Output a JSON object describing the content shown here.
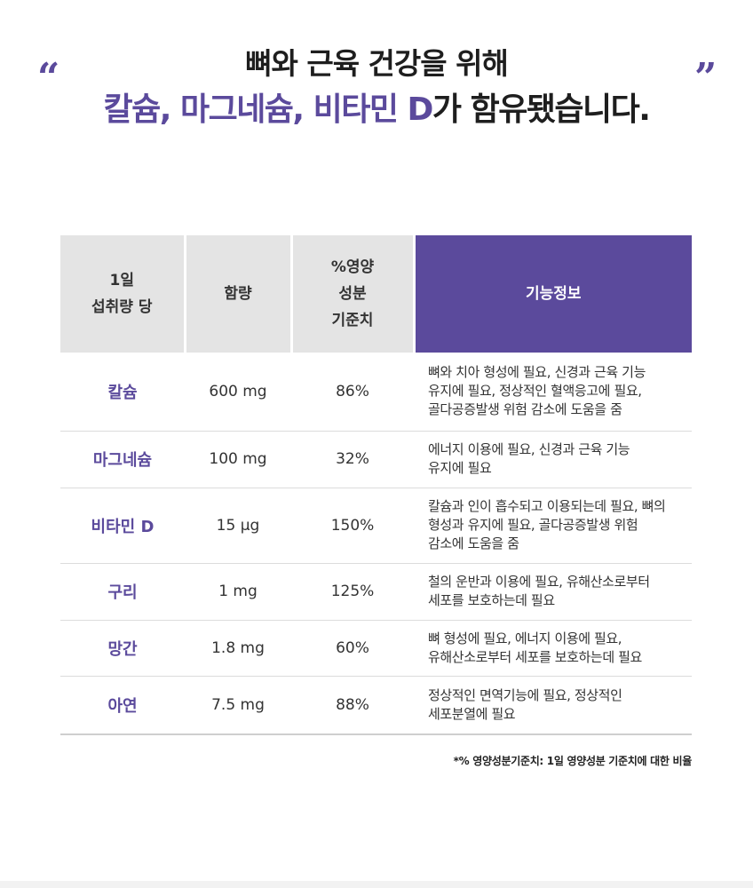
{
  "headline": {
    "open_quote": "“",
    "close_quote": "”",
    "line1": "뼈와 근육 건강을 위해",
    "line2_accent": "칼슘, 마그네슘, 비타민 D",
    "line2_rest": "가 함유됐습니다."
  },
  "table": {
    "headers": {
      "col1": [
        "1일",
        "섭취량 당"
      ],
      "col2": "함량",
      "col3": [
        "%영양",
        "성분",
        "기준치"
      ],
      "col4": "기능정보"
    },
    "rows": [
      {
        "name": "칼슘",
        "amount": "600 mg",
        "percent": "86%",
        "info": [
          "뼈와 치아 형성에 필요, 신경과 근육 기능",
          "유지에 필요, 정상적인 혈액응고에 필요,",
          "골다공증발생 위험 감소에 도움을 줌"
        ]
      },
      {
        "name": "마그네슘",
        "amount": "100 mg",
        "percent": "32%",
        "info": [
          "에너지 이용에 필요, 신경과 근육 기능",
          "유지에 필요"
        ]
      },
      {
        "name": "비타민 D",
        "amount": "15 μg",
        "percent": "150%",
        "info": [
          "칼슘과 인이 흡수되고 이용되는데 필요, 뼈의",
          "형성과 유지에 필요, 골다공증발생 위험",
          "감소에 도움을 줌"
        ]
      },
      {
        "name": "구리",
        "amount": "1 mg",
        "percent": "125%",
        "info": [
          "철의 운반과 이용에 필요, 유해산소로부터",
          "세포를 보호하는데 필요"
        ]
      },
      {
        "name": "망간",
        "amount": "1.8 mg",
        "percent": "60%",
        "info": [
          "뼈 형성에 필요, 에너지 이용에 필요,",
          "유해산소로부터 세포를 보호하는데 필요"
        ]
      },
      {
        "name": "아연",
        "amount": "7.5 mg",
        "percent": "88%",
        "info": [
          "정상적인 면역기능에 필요, 정상적인",
          "세포분열에 필요"
        ]
      }
    ]
  },
  "footnote": "*% 영양성분기준치: 1일 영양성분 기준치에 대한 비율",
  "colors": {
    "accent": "#5b4a9c",
    "header_gray": "#e4e4e4"
  }
}
